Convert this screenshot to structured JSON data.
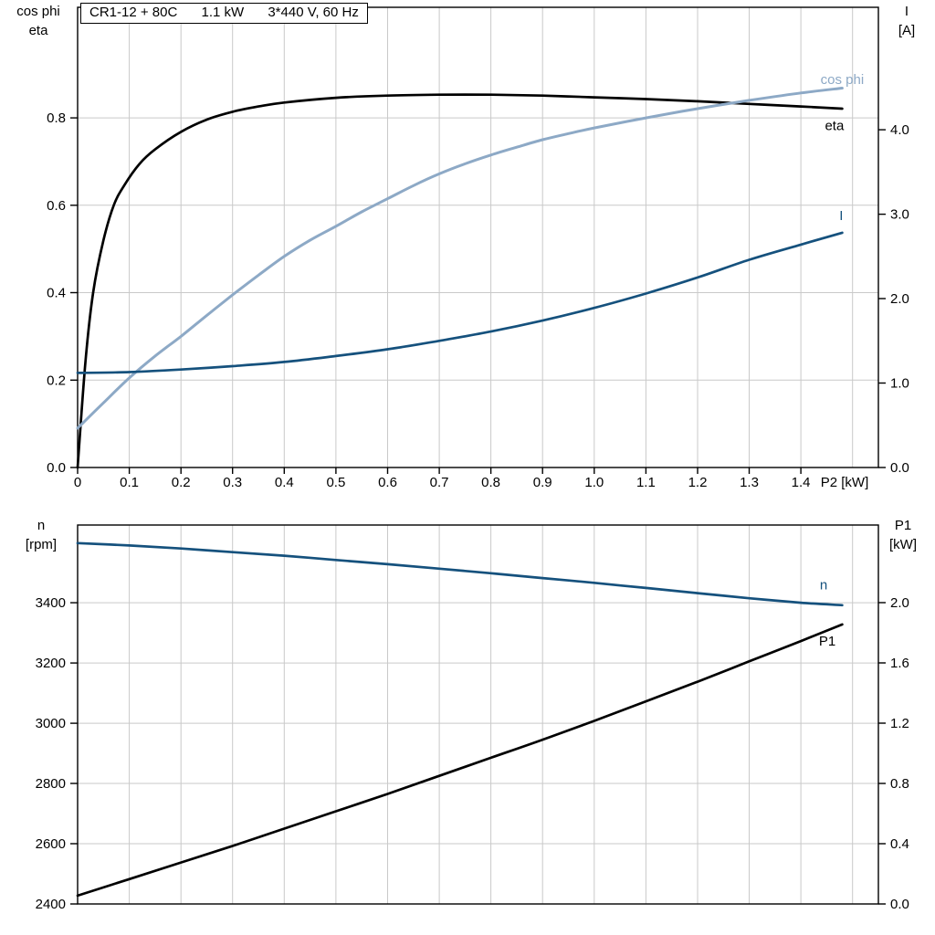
{
  "title_box": {
    "model": "CR1-12 + 80C",
    "power": "1.1 kW",
    "supply": "3*440 V, 60 Hz"
  },
  "colors": {
    "black": "#000000",
    "dark_blue": "#15517d",
    "light_blue": "#8da9c6",
    "grid": "#c9c9c9",
    "frame": "#000000"
  },
  "chart_data": [
    {
      "type": "line",
      "x_axis": {
        "min": 0,
        "max": 1.55,
        "label": "P2 [kW]",
        "ticks": [
          [
            0,
            "0"
          ],
          [
            0.1,
            "0.1"
          ],
          [
            0.2,
            "0.2"
          ],
          [
            0.3,
            "0.3"
          ],
          [
            0.4,
            "0.4"
          ],
          [
            0.5,
            "0.5"
          ],
          [
            0.6,
            "0.6"
          ],
          [
            0.7,
            "0.7"
          ],
          [
            0.8,
            "0.8"
          ],
          [
            0.9,
            "0.9"
          ],
          [
            1.0,
            "1.0"
          ],
          [
            1.1,
            "1.1"
          ],
          [
            1.2,
            "1.2"
          ],
          [
            1.3,
            "1.3"
          ],
          [
            1.4,
            "1.4"
          ]
        ],
        "grid": [
          0.1,
          0.2,
          0.3,
          0.4,
          0.5,
          0.6,
          0.7,
          0.8,
          0.9,
          1.0,
          1.1,
          1.2,
          1.3,
          1.4,
          1.5
        ]
      },
      "left_axis": {
        "title_lines": [
          "cos phi",
          "eta"
        ],
        "min": 0,
        "max": 1.053,
        "ticks": [
          [
            0,
            "0.0"
          ],
          [
            0.2,
            "0.2"
          ],
          [
            0.4,
            "0.4"
          ],
          [
            0.6,
            "0.6"
          ],
          [
            0.8,
            "0.8"
          ]
        ],
        "grid": [
          0.2,
          0.4,
          0.6,
          0.8
        ]
      },
      "right_axis": {
        "title_lines": [
          "I",
          "[A]"
        ],
        "min": 0,
        "max": 5.45,
        "ticks": [
          [
            0,
            "0.0"
          ],
          [
            1,
            "1.0"
          ],
          [
            2,
            "2.0"
          ],
          [
            3,
            "3.0"
          ],
          [
            4,
            "4.0"
          ]
        ]
      },
      "series": [
        {
          "name": "eta",
          "axis": "left",
          "color": "black",
          "width": 2.7,
          "label": {
            "text": "eta",
            "x": 1.465,
            "y": 0.772
          },
          "points": [
            [
              0,
              0
            ],
            [
              0.015,
              0.24
            ],
            [
              0.03,
              0.4
            ],
            [
              0.05,
              0.52
            ],
            [
              0.07,
              0.6
            ],
            [
              0.09,
              0.645
            ],
            [
              0.12,
              0.695
            ],
            [
              0.15,
              0.728
            ],
            [
              0.2,
              0.768
            ],
            [
              0.25,
              0.796
            ],
            [
              0.3,
              0.814
            ],
            [
              0.35,
              0.826
            ],
            [
              0.4,
              0.835
            ],
            [
              0.5,
              0.846
            ],
            [
              0.6,
              0.851
            ],
            [
              0.7,
              0.853
            ],
            [
              0.8,
              0.853
            ],
            [
              0.9,
              0.851
            ],
            [
              1.0,
              0.847
            ],
            [
              1.1,
              0.843
            ],
            [
              1.2,
              0.838
            ],
            [
              1.3,
              0.832
            ],
            [
              1.4,
              0.826
            ],
            [
              1.48,
              0.821
            ]
          ]
        },
        {
          "name": "cos phi",
          "axis": "left",
          "color": "light_blue",
          "width": 3,
          "label": {
            "text": "cos phi",
            "x": 1.48,
            "y": 0.878
          },
          "points": [
            [
              0,
              0.09
            ],
            [
              0.05,
              0.148
            ],
            [
              0.1,
              0.205
            ],
            [
              0.15,
              0.255
            ],
            [
              0.2,
              0.3
            ],
            [
              0.25,
              0.348
            ],
            [
              0.3,
              0.395
            ],
            [
              0.35,
              0.44
            ],
            [
              0.4,
              0.483
            ],
            [
              0.45,
              0.52
            ],
            [
              0.5,
              0.552
            ],
            [
              0.55,
              0.585
            ],
            [
              0.6,
              0.615
            ],
            [
              0.65,
              0.645
            ],
            [
              0.7,
              0.672
            ],
            [
              0.75,
              0.695
            ],
            [
              0.8,
              0.715
            ],
            [
              0.85,
              0.733
            ],
            [
              0.9,
              0.75
            ],
            [
              0.95,
              0.764
            ],
            [
              1.0,
              0.777
            ],
            [
              1.1,
              0.8
            ],
            [
              1.2,
              0.821
            ],
            [
              1.3,
              0.84
            ],
            [
              1.4,
              0.857
            ],
            [
              1.48,
              0.868
            ]
          ]
        },
        {
          "name": "I",
          "axis": "right",
          "color": "dark_blue",
          "width": 2.7,
          "label": {
            "text": "I",
            "x": 1.478,
            "y": 2.93
          },
          "points": [
            [
              0,
              1.12
            ],
            [
              0.1,
              1.13
            ],
            [
              0.2,
              1.16
            ],
            [
              0.3,
              1.2
            ],
            [
              0.4,
              1.25
            ],
            [
              0.5,
              1.32
            ],
            [
              0.6,
              1.4
            ],
            [
              0.7,
              1.5
            ],
            [
              0.8,
              1.61
            ],
            [
              0.9,
              1.74
            ],
            [
              1.0,
              1.89
            ],
            [
              1.1,
              2.06
            ],
            [
              1.2,
              2.25
            ],
            [
              1.3,
              2.46
            ],
            [
              1.4,
              2.64
            ],
            [
              1.48,
              2.78
            ]
          ]
        }
      ]
    },
    {
      "type": "line",
      "x_axis": {
        "min": 0,
        "max": 1.55,
        "label": "",
        "ticks": [],
        "grid": [
          0.1,
          0.2,
          0.3,
          0.4,
          0.5,
          0.6,
          0.7,
          0.8,
          0.9,
          1.0,
          1.1,
          1.2,
          1.3,
          1.4,
          1.5
        ]
      },
      "left_axis": {
        "title_lines": [
          "n",
          "[rpm]"
        ],
        "min": 2400,
        "max": 3658,
        "ticks": [
          [
            2400,
            "2400"
          ],
          [
            2600,
            "2600"
          ],
          [
            2800,
            "2800"
          ],
          [
            3000,
            "3000"
          ],
          [
            3200,
            "3200"
          ],
          [
            3400,
            "3400"
          ]
        ],
        "grid": [
          2600,
          2800,
          3000,
          3200,
          3400
        ]
      },
      "right_axis": {
        "title_lines": [
          "P1",
          "[kW]"
        ],
        "min": 0,
        "max": 2.515,
        "ticks": [
          [
            0,
            "0.0"
          ],
          [
            0.4,
            "0.4"
          ],
          [
            0.8,
            "0.8"
          ],
          [
            1.2,
            "1.2"
          ],
          [
            1.6,
            "1.6"
          ],
          [
            2.0,
            "2.0"
          ]
        ]
      },
      "series": [
        {
          "name": "n",
          "axis": "left",
          "color": "dark_blue",
          "width": 2.7,
          "label": {
            "text": "n",
            "x": 1.444,
            "y": 3444
          },
          "points": [
            [
              0,
              3598
            ],
            [
              0.1,
              3590
            ],
            [
              0.2,
              3580
            ],
            [
              0.3,
              3568
            ],
            [
              0.4,
              3556
            ],
            [
              0.5,
              3542
            ],
            [
              0.6,
              3528
            ],
            [
              0.7,
              3513
            ],
            [
              0.8,
              3498
            ],
            [
              0.9,
              3482
            ],
            [
              1.0,
              3466
            ],
            [
              1.1,
              3449
            ],
            [
              1.2,
              3432
            ],
            [
              1.3,
              3415
            ],
            [
              1.4,
              3400
            ],
            [
              1.48,
              3392
            ]
          ]
        },
        {
          "name": "P1",
          "axis": "right",
          "color": "black",
          "width": 2.7,
          "label": {
            "text": "P1",
            "x": 1.451,
            "y": 1.715
          },
          "points": [
            [
              0,
              0.055
            ],
            [
              0.1,
              0.165
            ],
            [
              0.2,
              0.275
            ],
            [
              0.3,
              0.385
            ],
            [
              0.4,
              0.5
            ],
            [
              0.5,
              0.615
            ],
            [
              0.6,
              0.73
            ],
            [
              0.7,
              0.85
            ],
            [
              0.8,
              0.97
            ],
            [
              0.9,
              1.09
            ],
            [
              1.0,
              1.215
            ],
            [
              1.1,
              1.345
            ],
            [
              1.2,
              1.475
            ],
            [
              1.3,
              1.61
            ],
            [
              1.4,
              1.745
            ],
            [
              1.48,
              1.855
            ]
          ]
        }
      ]
    }
  ]
}
